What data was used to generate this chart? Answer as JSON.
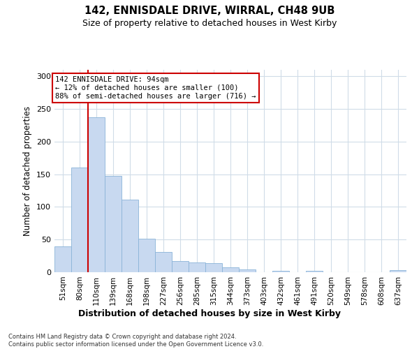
{
  "title1": "142, ENNISDALE DRIVE, WIRRAL, CH48 9UB",
  "title2": "Size of property relative to detached houses in West Kirby",
  "xlabel": "Distribution of detached houses by size in West Kirby",
  "ylabel": "Number of detached properties",
  "bar_labels": [
    "51sqm",
    "80sqm",
    "110sqm",
    "139sqm",
    "168sqm",
    "198sqm",
    "227sqm",
    "256sqm",
    "285sqm",
    "315sqm",
    "344sqm",
    "373sqm",
    "403sqm",
    "432sqm",
    "461sqm",
    "491sqm",
    "520sqm",
    "549sqm",
    "578sqm",
    "608sqm",
    "637sqm"
  ],
  "bar_heights": [
    40,
    160,
    237,
    147,
    111,
    51,
    31,
    17,
    15,
    14,
    7,
    4,
    0,
    2,
    0,
    2,
    0,
    0,
    0,
    0,
    3
  ],
  "bar_color": "#c8d9f0",
  "bar_edge_color": "#8ab4d8",
  "bg_color": "#ffffff",
  "plot_bg_color": "#ffffff",
  "grid_color": "#d0dce8",
  "vline_color": "#cc0000",
  "vline_x": 1.5,
  "ann_line1": "142 ENNISDALE DRIVE: 94sqm",
  "ann_line2": "← 12% of detached houses are smaller (100)",
  "ann_line3": "88% of semi-detached houses are larger (716) →",
  "ann_box_color": "#cc0000",
  "ylim": [
    0,
    310
  ],
  "yticks": [
    0,
    50,
    100,
    150,
    200,
    250,
    300
  ],
  "footnote_line1": "Contains HM Land Registry data © Crown copyright and database right 2024.",
  "footnote_line2": "Contains public sector information licensed under the Open Government Licence v3.0."
}
